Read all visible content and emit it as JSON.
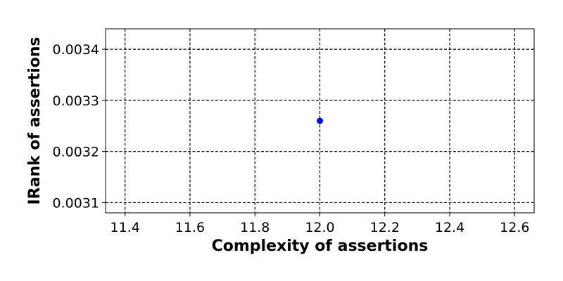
{
  "chart_data": {
    "type": "scatter",
    "title": "",
    "xlabel": "Complexity of assertions",
    "ylabel": "IRank of assertions",
    "xlim": [
      11.34,
      12.66
    ],
    "ylim": [
      0.00308,
      0.00344
    ],
    "xticks": [
      11.4,
      11.6,
      11.8,
      12.0,
      12.2,
      12.4,
      12.6
    ],
    "xtick_labels": [
      "11.4",
      "11.6",
      "11.8",
      "12.0",
      "12.2",
      "12.4",
      "12.6"
    ],
    "yticks": [
      0.0031,
      0.0032,
      0.0033,
      0.0034
    ],
    "ytick_labels": [
      "0.0031",
      "0.0032",
      "0.0033",
      "0.0034"
    ],
    "grid": true,
    "grid_style": "dashed",
    "series": [
      {
        "color": "#0000ff",
        "marker": "circle",
        "points": [
          {
            "x": 12.0,
            "y": 0.00326
          }
        ]
      }
    ]
  }
}
